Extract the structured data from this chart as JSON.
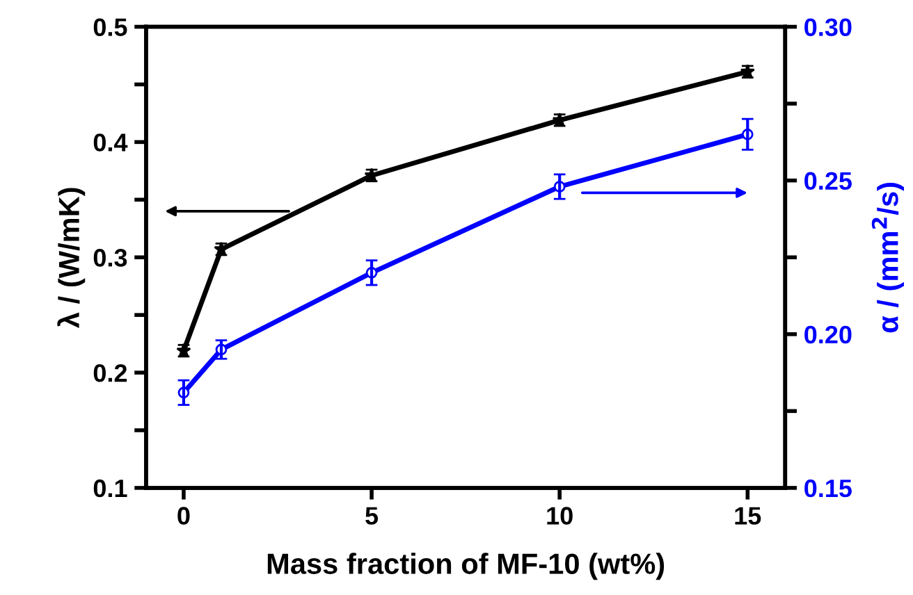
{
  "chart_data": {
    "type": "line",
    "xlabel": "Mass fraction of MF-10 (wt%)",
    "ylabel": "λ / (W/mK)",
    "y2label": "α / (mm$^{2}$/s)",
    "x": [
      0,
      1,
      5,
      10,
      15
    ],
    "series": [
      {
        "color": "#000000",
        "marker": "star",
        "values": [
          0.219,
          0.307,
          0.371,
          0.419,
          0.461
        ],
        "errors": [
          0.005,
          0.005,
          0.005,
          0.005,
          0.005
        ]
      },
      {
        "color": "#0000ff",
        "marker": "circle",
        "axis": "y2",
        "values": [
          0.181,
          0.195,
          0.22,
          0.248,
          0.265
        ],
        "errors": [
          0.004,
          0.003,
          0.004,
          0.004,
          0.005
        ]
      }
    ],
    "xlim": [
      -1,
      16
    ],
    "xticks": [
      0,
      5,
      10,
      15
    ],
    "ylim": [
      0.1,
      0.5
    ],
    "yticks": [
      0.1,
      {
        "value": 0.15,
        "label": null
      },
      0.2,
      {
        "value": 0.25,
        "label": null
      },
      0.3,
      {
        "value": 0.35,
        "label": null
      },
      0.4,
      {
        "value": 0.45,
        "label": null
      },
      0.5
    ],
    "y2lim": [
      0.15,
      0.3
    ],
    "y2ticks": [
      {
        "value": 0.15,
        "label": "0.15"
      },
      {
        "value": 0.175,
        "label": null
      },
      {
        "value": 0.2,
        "label": "0.20"
      },
      {
        "value": 0.225,
        "label": null
      },
      {
        "value": 0.25,
        "label": "0.25"
      },
      {
        "value": 0.275,
        "label": null
      },
      {
        "value": 0.3,
        "label": "0.30"
      }
    ],
    "grid": false,
    "legend": false
  }
}
